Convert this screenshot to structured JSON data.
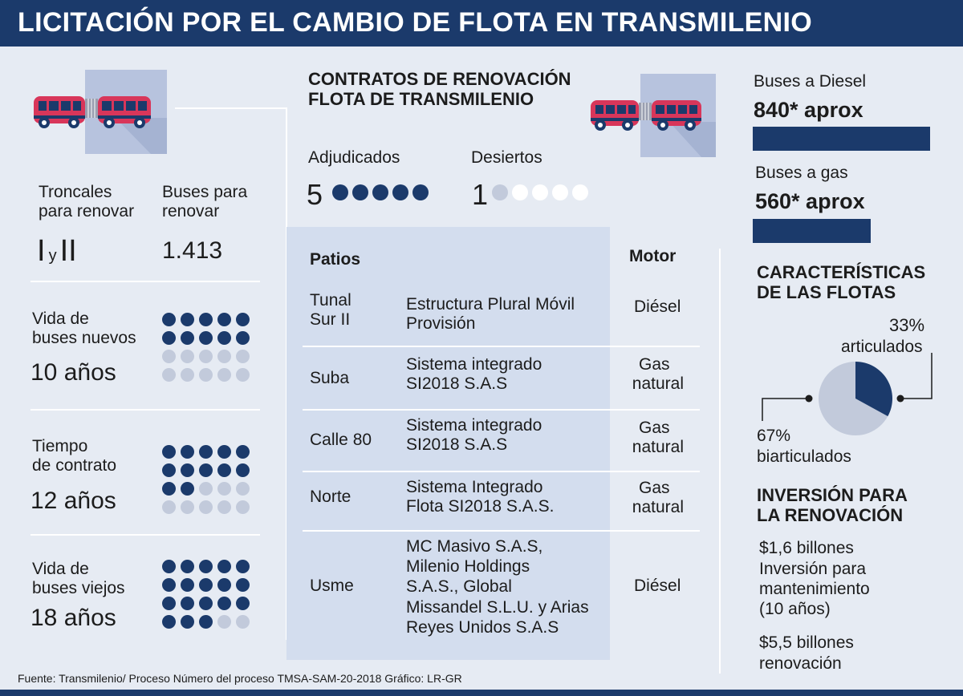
{
  "title": "LICITACIÓN POR EL CAMBIO DE FLOTA EN TRANSMILENIO",
  "left": {
    "troncales_label_1": "Troncales",
    "troncales_label_2": "para renovar",
    "troncales_value_a": "I",
    "troncales_value_y": "y",
    "troncales_value_b": "II",
    "buses_label_1": "Buses para",
    "buses_label_2": "renovar",
    "buses_value": "1.413",
    "vida_nuevos_1": "Vida de",
    "vida_nuevos_2": "buses nuevos",
    "vida_nuevos_value": "10 años",
    "tiempo_1": "Tiempo",
    "tiempo_2": "de contrato",
    "tiempo_value": "12 años",
    "vida_viejos_1": "Vida de",
    "vida_viejos_2": "buses viejos",
    "vida_viejos_value": "18 años"
  },
  "contracts": {
    "title_1": "CONTRATOS DE RENOVACIÓN",
    "title_2": "FLOTA DE TRANSMILENIO",
    "adjudicados_label": "Adjudicados",
    "adjudicados_value": "5",
    "desiertos_label": "Desiertos",
    "desiertos_value": "1"
  },
  "table": {
    "header_patios": "Patios",
    "header_motor": "Motor",
    "rows": [
      {
        "patio_1": "Tunal",
        "patio_2": "Sur II",
        "op_1": "Estructura Plural Móvil",
        "op_2": "Provisión",
        "motor_1": "Diésel",
        "motor_2": ""
      },
      {
        "patio_1": "Suba",
        "patio_2": "",
        "op_1": "Sistema integrado",
        "op_2": "SI2018 S.A.S",
        "motor_1": "Gas",
        "motor_2": "natural"
      },
      {
        "patio_1": "Calle 80",
        "patio_2": "",
        "op_1": "Sistema integrado",
        "op_2": "SI2018 S.A.S",
        "motor_1": "Gas",
        "motor_2": "natural"
      },
      {
        "patio_1": "Norte",
        "patio_2": "",
        "op_1": "Sistema Integrado",
        "op_2": "Flota SI2018 S.A.S.",
        "motor_1": "Gas",
        "motor_2": "natural"
      }
    ],
    "usme": {
      "patio": "Usme",
      "op": [
        "MC Masivo S.A.S,",
        "Milenio Holdings",
        "S.A.S., Global",
        "Missandel S.L.U. y Arias",
        "Reyes Unidos S.A.S"
      ],
      "motor": "Diésel"
    }
  },
  "right": {
    "diesel_label": "Buses a Diesel",
    "diesel_value": "840* aprox",
    "diesel_count": 840,
    "gas_label": "Buses a gas",
    "gas_value": "560* aprox",
    "gas_count": 560,
    "caract_1": "CARACTERÍSTICAS",
    "caract_2": "DE LAS FLOTAS",
    "art_pct": "33%",
    "art_label": "articulados",
    "biart_pct": "67%",
    "biart_label": "biarticulados",
    "inv_1": "INVERSIÓN PARA",
    "inv_2": "LA RENOVACIÓN",
    "inv_a_value": "$1,6 billones",
    "inv_a_1": "Inversión para",
    "inv_a_2": "mantenimiento",
    "inv_a_3": "(10 años)",
    "inv_b_value": "$5,5 billones",
    "inv_b_1": "renovación"
  },
  "chart_data": {
    "type": "pie",
    "title": "CARACTERÍSTICAS DE LAS FLOTAS",
    "labels": [
      "articulados",
      "biarticulados"
    ],
    "values": [
      33,
      67
    ],
    "colors": [
      "#1b3a6b",
      "#c2cadb"
    ]
  },
  "dots": {
    "vida_nuevos_filled": 10,
    "tiempo_filled": 12,
    "vida_viejos_filled": 18,
    "total": 20
  },
  "colors": {
    "navy": "#1b3a6b",
    "light": "#c2cadb",
    "bg": "#e6ebf3",
    "bus_red": "#d8365a"
  },
  "footer": "Fuente: Transmilenio/ Proceso Número del proceso TMSA-SAM-20-2018   Gráfico: LR-GR"
}
